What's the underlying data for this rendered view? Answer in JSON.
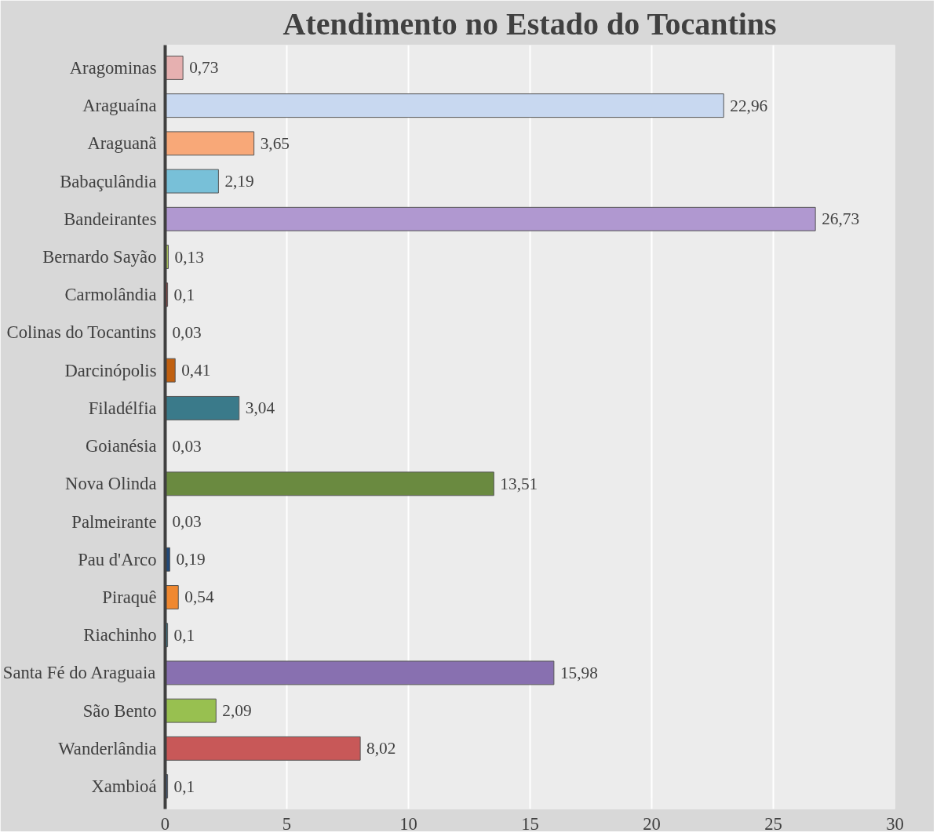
{
  "chart_data": {
    "type": "bar",
    "orientation": "horizontal",
    "title": "Atendimento no Estado do Tocantins",
    "categories": [
      "Aragominas",
      "Araguaína",
      "Araguanã",
      "Babaçulândia",
      "Bandeirantes",
      "Bernardo Sayão",
      "Carmolândia",
      "Colinas do Tocantins",
      "Darcinópolis",
      "Filadélfia",
      "Goianésia",
      "Nova Olinda",
      "Palmeirante",
      "Pau d'Arco",
      "Piraquê",
      "Riachinho",
      "Santa Fé do Araguaia",
      "São Bento",
      "Wanderlândia",
      "Xambioá"
    ],
    "values": [
      0.73,
      22.96,
      3.65,
      2.19,
      26.73,
      0.13,
      0.1,
      0.03,
      0.41,
      3.04,
      0.03,
      13.51,
      0.03,
      0.19,
      0.54,
      0.1,
      15.98,
      2.09,
      8.02,
      0.1
    ],
    "value_labels": [
      "0,73",
      "22,96",
      "3,65",
      "2,19",
      "26,73",
      "0,13",
      "0,1",
      "0,03",
      "0,41",
      "3,04",
      "0,03",
      "13,51",
      "0,03",
      "0,19",
      "0,54",
      "0,1",
      "15,98",
      "2,09",
      "8,02",
      "0,1"
    ],
    "colors": [
      "#e6b0b0",
      "#c8d8f0",
      "#f8a878",
      "#78c0d8",
      "#b098d0",
      "#a8c060",
      "#c85050",
      "#4f81bd",
      "#c06010",
      "#3a7a8a",
      "#403050",
      "#6a8a40",
      "#702828",
      "#204878",
      "#f08830",
      "#40a0c0",
      "#8870b0",
      "#98c050",
      "#c85858",
      "#4a70a8"
    ],
    "xlim": [
      0,
      30
    ],
    "xticks": [
      0,
      5,
      10,
      15,
      20,
      25,
      30
    ],
    "grid": "x"
  }
}
